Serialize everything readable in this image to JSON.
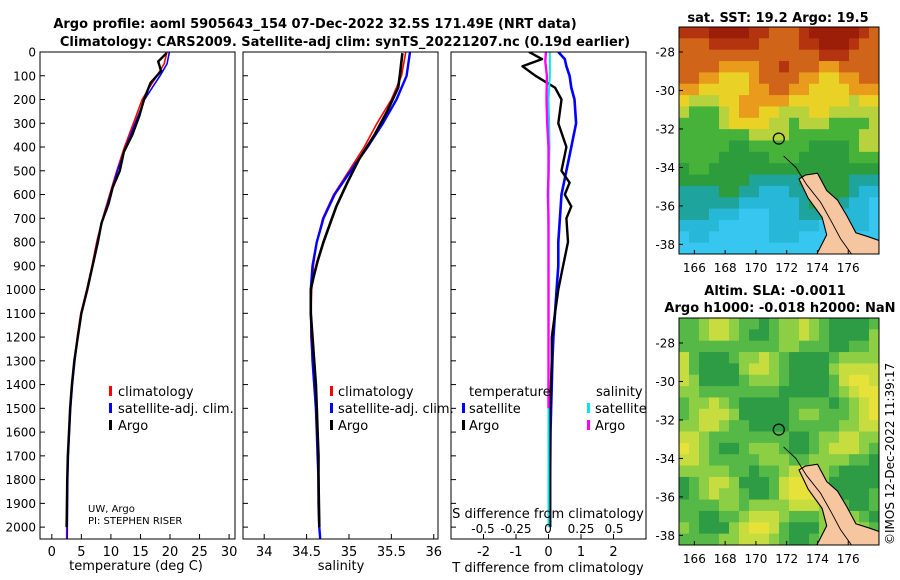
{
  "title_line1": "Argo profile: aoml 5905643_154 07-Dec-2022 32.5S 171.49E (NRT data)",
  "title_line2": "Climatology: CARS2009. Satellite-adj clim: synTS_20221207.nc (0.19d earlier)",
  "credits": {
    "line1": "UW, Argo",
    "line2": "PI: STEPHEN RISER"
  },
  "timestamp": "©IMOS 12-Dec-2022 11:39:17",
  "colors": {
    "argo": "#000000",
    "climatology": "#ff0000",
    "satellite": "#0000ff",
    "sat_salinity": "#00e5ee",
    "argo_salinity": "#ff00ff"
  },
  "chart_data": [
    {
      "type": "line",
      "name": "temperature",
      "xlabel": "temperature (deg C)",
      "xlim": [
        -2,
        31
      ],
      "ylim": [
        0,
        2050
      ],
      "xticks": [
        0,
        5,
        10,
        15,
        20,
        25,
        30
      ],
      "yticks": [
        0,
        100,
        200,
        300,
        400,
        500,
        600,
        700,
        800,
        900,
        1000,
        1100,
        1200,
        1300,
        1400,
        1500,
        1600,
        1700,
        1800,
        1900,
        2000
      ],
      "legend": [
        "climatology",
        "satellite-adj. clim.",
        "Argo"
      ],
      "series": [
        {
          "name": "climatology",
          "color": "#ff0000",
          "x": [
            19.5,
            19.0,
            17.8,
            16.5,
            15.3,
            13.8,
            12.3,
            11.0,
            9.8,
            8.6,
            7.6,
            6.8,
            5.9,
            4.9,
            4.3,
            3.8,
            3.4,
            3.1,
            2.9,
            2.7,
            2.6,
            2.5
          ],
          "y": [
            0,
            50,
            100,
            150,
            200,
            300,
            400,
            500,
            600,
            700,
            800,
            900,
            1000,
            1100,
            1200,
            1300,
            1400,
            1500,
            1600,
            1700,
            1800,
            2050
          ]
        },
        {
          "name": "satellite-adj. clim.",
          "color": "#0000ff",
          "x": [
            19.9,
            19.5,
            18.3,
            17.0,
            15.7,
            14.1,
            12.5,
            11.1,
            9.9,
            8.7,
            7.7,
            6.9,
            6.0,
            5.0,
            4.4,
            3.9,
            3.5,
            3.2,
            3.0,
            2.8,
            2.7,
            2.6
          ],
          "y": [
            0,
            50,
            100,
            150,
            200,
            300,
            400,
            500,
            600,
            700,
            800,
            900,
            1000,
            1100,
            1200,
            1300,
            1400,
            1500,
            1600,
            1700,
            1800,
            2050
          ]
        },
        {
          "name": "Argo",
          "color": "#000000",
          "x": [
            19.4,
            18.0,
            18.5,
            16.7,
            15.6,
            14.8,
            13.6,
            12.2,
            11.5,
            10.3,
            9.6,
            8.4,
            7.8,
            6.9,
            6.0,
            5.0,
            4.4,
            3.8,
            3.4,
            3.1,
            2.9,
            2.7,
            2.6,
            2.5
          ],
          "y": [
            5,
            40,
            80,
            130,
            200,
            270,
            350,
            420,
            500,
            570,
            640,
            720,
            800,
            900,
            1000,
            1100,
            1200,
            1300,
            1400,
            1500,
            1600,
            1700,
            1800,
            2000
          ]
        }
      ]
    },
    {
      "type": "line",
      "name": "salinity",
      "xlabel": "salinity",
      "xlim": [
        33.75,
        36.05
      ],
      "ylim": [
        0,
        2050
      ],
      "xticks": [
        34,
        34.5,
        35,
        35.5,
        36
      ],
      "legend": [
        "climatology",
        "satellite-adj. clim.",
        "Argo"
      ],
      "series": [
        {
          "name": "climatology",
          "color": "#ff0000",
          "x": [
            35.67,
            35.62,
            35.5,
            35.33,
            35.18,
            35.0,
            34.82,
            34.69,
            34.62,
            34.58,
            34.56,
            34.55,
            34.55,
            34.57,
            34.59,
            34.61,
            34.62,
            34.63,
            34.64,
            34.64,
            34.65,
            34.66
          ],
          "y": [
            0,
            100,
            200,
            300,
            400,
            500,
            600,
            700,
            800,
            900,
            1000,
            1100,
            1200,
            1300,
            1400,
            1500,
            1600,
            1700,
            1800,
            1900,
            2000,
            2050
          ]
        },
        {
          "name": "satellite-adj. clim.",
          "color": "#0000ff",
          "x": [
            35.72,
            35.68,
            35.56,
            35.4,
            35.22,
            35.02,
            34.83,
            34.7,
            34.62,
            34.57,
            34.55,
            34.55,
            34.56,
            34.57,
            34.59,
            34.61,
            34.62,
            34.63,
            34.64,
            34.64,
            34.65,
            34.66
          ],
          "y": [
            0,
            100,
            200,
            300,
            400,
            500,
            600,
            700,
            800,
            900,
            1000,
            1100,
            1200,
            1300,
            1400,
            1500,
            1600,
            1700,
            1800,
            1900,
            2000,
            2050
          ]
        },
        {
          "name": "Argo",
          "color": "#000000",
          "x": [
            35.63,
            35.6,
            35.58,
            35.45,
            35.3,
            35.12,
            34.98,
            34.85,
            34.78,
            34.7,
            34.63,
            34.58,
            34.55,
            34.55,
            34.57,
            34.59,
            34.61,
            34.62,
            34.63,
            34.64,
            34.64,
            34.65
          ],
          "y": [
            5,
            100,
            150,
            250,
            350,
            450,
            550,
            650,
            720,
            800,
            880,
            950,
            1000,
            1100,
            1200,
            1300,
            1400,
            1500,
            1600,
            1700,
            1800,
            2000
          ]
        }
      ]
    },
    {
      "type": "line",
      "name": "differences",
      "xlabel": "T difference from climatology",
      "xlabel_top": "S difference from climatology",
      "xlim": [
        -3,
        3
      ],
      "ylim": [
        0,
        2050
      ],
      "xticks": [
        -2,
        -1,
        0,
        1,
        2
      ],
      "xticks_salinity": [
        "-0.5",
        "-0.25",
        "0",
        "0.25",
        "0.5"
      ],
      "legend_temperature": {
        "title": "temperature",
        "items": [
          "satellite",
          "Argo"
        ]
      },
      "legend_salinity": {
        "title": "salinity",
        "items": [
          "satellite",
          "Argo"
        ]
      },
      "series": [
        {
          "name": "temperature satellite",
          "color": "#0000ff",
          "x": [
            0.3,
            0.5,
            0.55,
            0.65,
            0.7,
            0.8,
            0.85,
            0.7,
            0.55,
            0.4,
            0.35,
            0.3,
            0.3,
            0.25,
            0.2,
            0.15,
            0.12,
            0.1,
            0.08,
            0.06,
            0.05,
            0.05
          ],
          "y": [
            0,
            30,
            60,
            100,
            150,
            200,
            300,
            400,
            500,
            600,
            700,
            800,
            900,
            1000,
            1100,
            1200,
            1300,
            1400,
            1500,
            1600,
            1800,
            2000
          ]
        },
        {
          "name": "temperature Argo",
          "color": "#000000",
          "x": [
            -0.6,
            -0.2,
            -0.8,
            -0.4,
            0.2,
            0.4,
            0.3,
            0.55,
            0.4,
            0.65,
            0.5,
            0.7,
            0.55,
            0.6,
            0.45,
            0.3,
            0.2,
            0.1,
            0.1,
            0.05,
            0.05,
            0.05
          ],
          "y": [
            0,
            30,
            60,
            100,
            150,
            200,
            300,
            400,
            500,
            550,
            600,
            650,
            700,
            800,
            900,
            1000,
            1100,
            1200,
            1300,
            1500,
            1700,
            2000
          ]
        },
        {
          "name": "salinity satellite",
          "color": "#00e5ee",
          "x": [
            0.04,
            0.04,
            0.0,
            0.02,
            0.03,
            0.01,
            0.0,
            -0.01,
            0.0,
            0.0,
            0.0,
            0.0,
            0.0,
            0.0
          ],
          "y": [
            0,
            100,
            200,
            300,
            400,
            500,
            600,
            700,
            800,
            900,
            1100,
            1400,
            1700,
            2000
          ]
        },
        {
          "name": "salinity Argo",
          "color": "#ff00ff",
          "x": [
            -0.08,
            -0.1,
            -0.05,
            -0.06,
            -0.04,
            0.0,
            0.0,
            -0.02,
            0.0,
            0.0,
            0.0,
            0.0,
            0.0
          ],
          "y": [
            0,
            40,
            100,
            200,
            300,
            400,
            500,
            600,
            700,
            800,
            900,
            1200,
            1500
          ]
        }
      ]
    },
    {
      "type": "heatmap",
      "name": "sst_map",
      "title": "sat. SST: 19.2 Argo: 19.5",
      "xticks": [
        166,
        168,
        170,
        172,
        174,
        176
      ],
      "yticks": [
        -28,
        -30,
        -32,
        -34,
        -36,
        -38
      ],
      "xlim": [
        165,
        178
      ],
      "ylim": [
        -38.5,
        -26.7
      ],
      "float_position": [
        171.49,
        -32.5
      ]
    },
    {
      "type": "heatmap",
      "name": "sla_map",
      "title_line1": "Altim. SLA: -0.0011",
      "title_line2": "Argo h1000: -0.018 h2000: NaN",
      "xticks": [
        166,
        168,
        170,
        172,
        174,
        176
      ],
      "yticks": [
        -28,
        -30,
        -32,
        -34,
        -36,
        -38
      ],
      "xlim": [
        165,
        178
      ],
      "ylim": [
        -38.5,
        -26.7
      ],
      "float_position": [
        171.49,
        -32.5
      ]
    }
  ]
}
